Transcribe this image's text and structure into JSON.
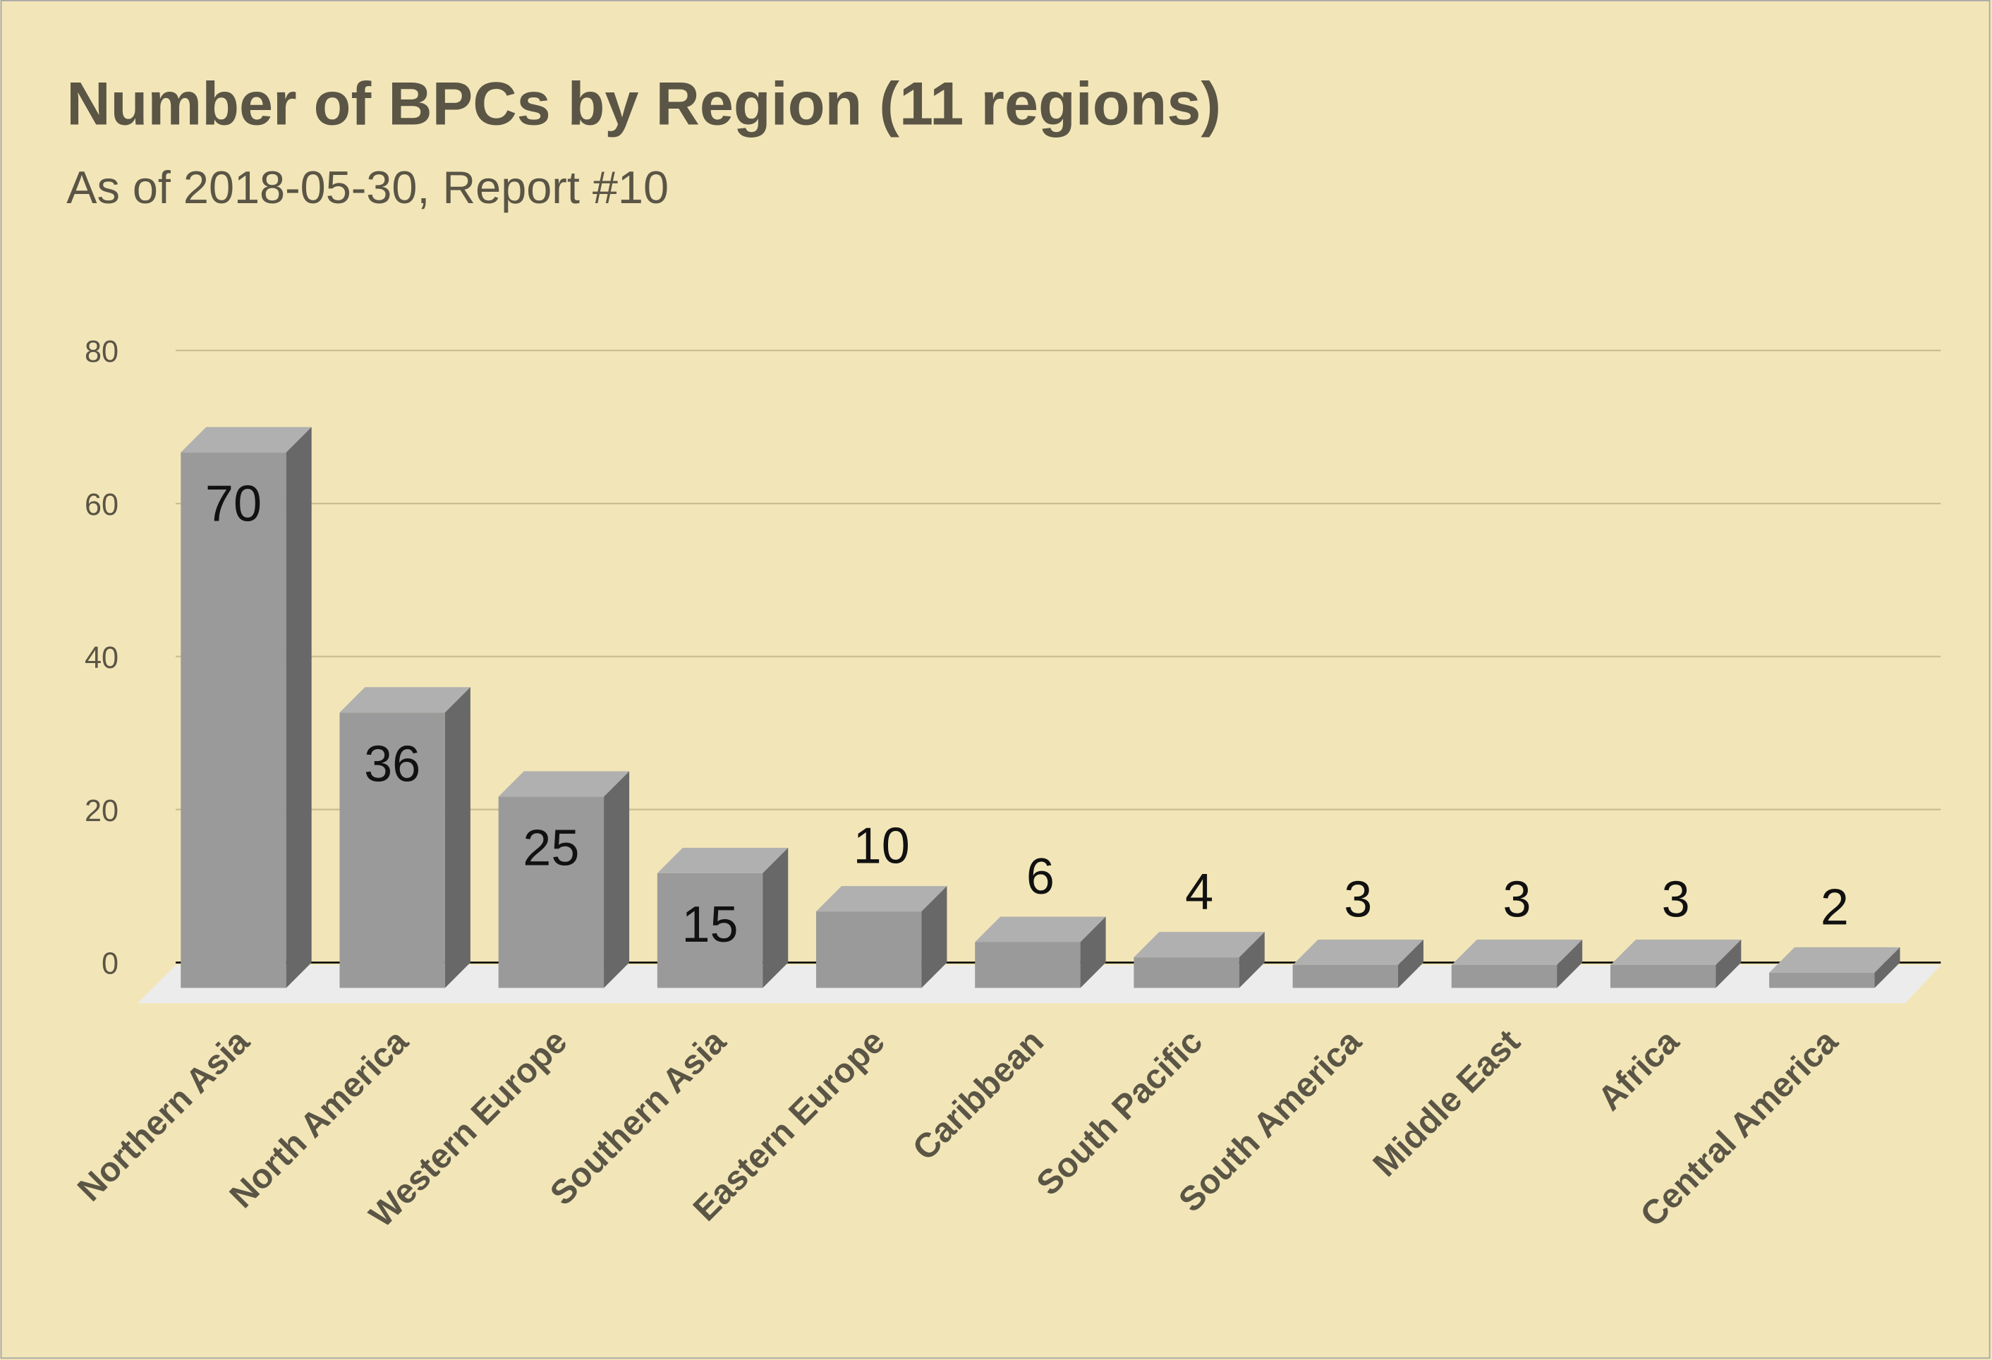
{
  "chart_data": {
    "type": "bar3d",
    "title": "Number of BPCs by Region (11 regions)",
    "subtitle": "As of 2018-05-30, Report #10",
    "categories": [
      "Northern Asia",
      "North America",
      "Western Europe",
      "Southern Asia",
      "Eastern Europe",
      "Caribbean",
      "South Pacific",
      "South America",
      "Middle East",
      "Africa",
      "Central America"
    ],
    "values": [
      70,
      36,
      25,
      15,
      10,
      6,
      4,
      3,
      3,
      3,
      2
    ],
    "color": "#9a9a9a",
    "ylim": [
      0,
      80
    ],
    "yticks": [
      0,
      20,
      40,
      60,
      80
    ],
    "grid": true
  }
}
